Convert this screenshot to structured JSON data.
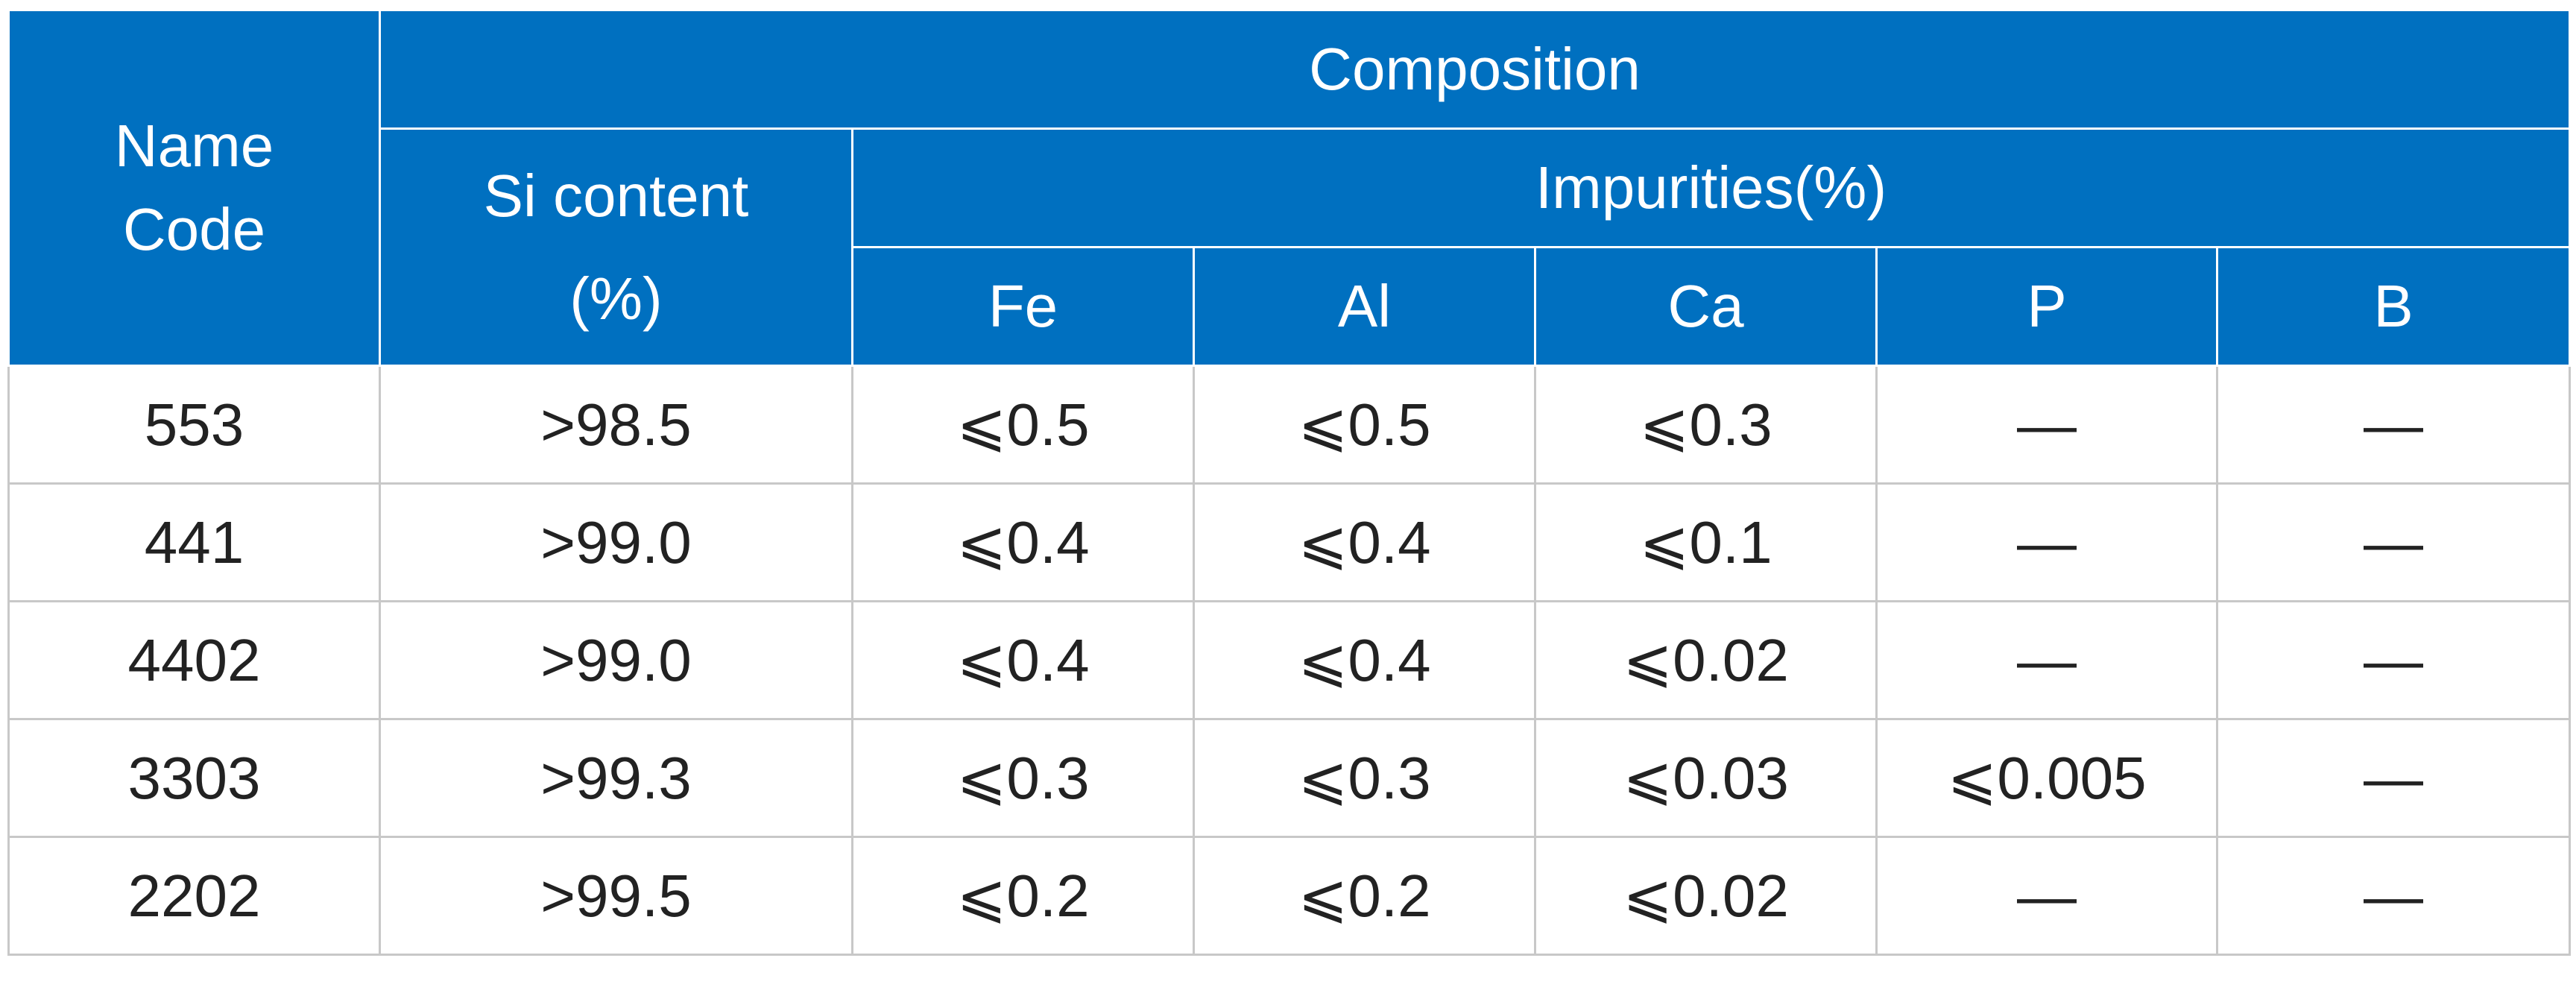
{
  "header": {
    "name_code_line1": "Name",
    "name_code_line2": "Code",
    "composition": "Composition",
    "si_content_line1": "Si content",
    "si_content_line2": "(%)",
    "impurities": "Impurities(%)",
    "columns": [
      "Fe",
      "Al",
      "Ca",
      "P",
      "B"
    ]
  },
  "rows": [
    {
      "code": "553",
      "si": ">98.5",
      "fe": "⩽0.5",
      "al": "⩽0.5",
      "ca": "⩽0.3",
      "p": "—",
      "b": "—"
    },
    {
      "code": "441",
      "si": ">99.0",
      "fe": "⩽0.4",
      "al": "⩽0.4",
      "ca": "⩽0.1",
      "p": "—",
      "b": "—"
    },
    {
      "code": "4402",
      "si": ">99.0",
      "fe": "⩽0.4",
      "al": "⩽0.4",
      "ca": "⩽0.02",
      "p": "—",
      "b": "—"
    },
    {
      "code": "3303",
      "si": ">99.3",
      "fe": "⩽0.3",
      "al": "⩽0.3",
      "ca": "⩽0.03",
      "p": "⩽0.005",
      "b": "—"
    },
    {
      "code": "2202",
      "si": ">99.5",
      "fe": "⩽0.2",
      "al": "⩽0.2",
      "ca": "⩽0.02",
      "p": "—",
      "b": "—"
    }
  ],
  "colors": {
    "header_bg": "#0070c0",
    "header_text": "#ffffff",
    "body_text": "#222222",
    "grid_line": "#c8c8c8"
  }
}
